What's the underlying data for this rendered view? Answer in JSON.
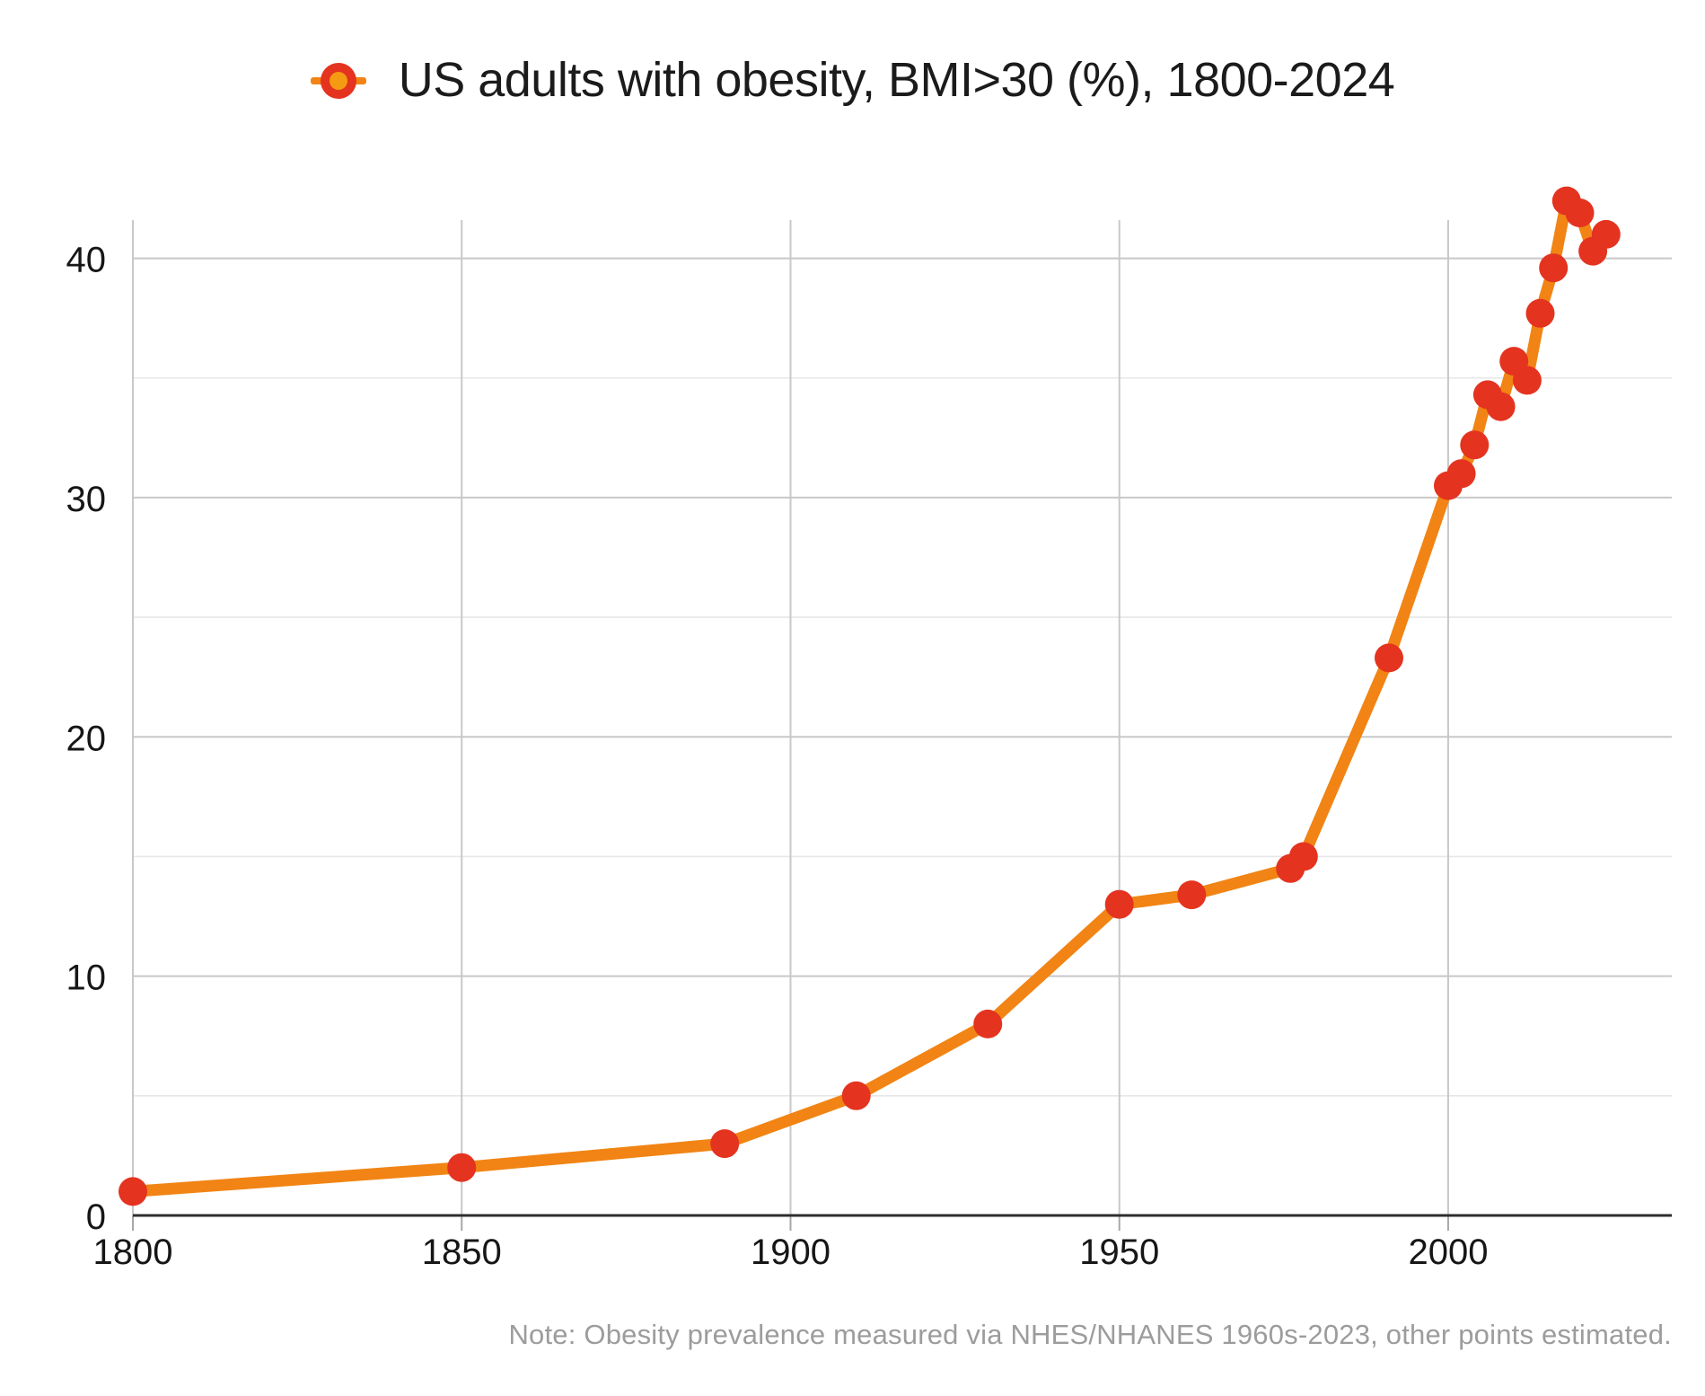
{
  "title": {
    "text": "US adults with obesity, BMI>30 (%), 1800-2024"
  },
  "note": {
    "text": "Note: Obesity prevalence measured via NHES/NHANES 1960s-2023, other points estimated."
  },
  "legend": {
    "marker": "line-with-round-marker"
  },
  "colors": {
    "background": "#ffffff",
    "line": "#F18414",
    "marker": "#E4331F",
    "legend_inner": "#F59B13",
    "grid_major": "#c8c8c8",
    "grid_minor": "#e7e7e7",
    "left_spine": "#c8c8c8",
    "axis_line": "#2e2e2e",
    "tick_stub": "#a8a8a8",
    "tick_label": "#161616",
    "title_text": "#1b1b1b",
    "note_text": "#9c9c9c"
  },
  "chart_data": {
    "type": "line",
    "title": "US adults with obesity, BMI>30 (%), 1800-2024",
    "xlabel": "",
    "ylabel": "",
    "x_ticks": [
      1800,
      1850,
      1900,
      1950,
      2000
    ],
    "y_ticks": [
      0,
      10,
      20,
      30,
      40
    ],
    "y_minor_gridlines": [
      5,
      15,
      25,
      35
    ],
    "xlim": [
      1800,
      2034
    ],
    "ylim": [
      0,
      43.1
    ],
    "grid": true,
    "legend_position": "title-inline",
    "series": [
      {
        "name": "US adults with obesity, BMI>30 (%)",
        "points": [
          [
            1800,
            1.0
          ],
          [
            1850,
            2.0
          ],
          [
            1890,
            3.0
          ],
          [
            1910,
            5.0
          ],
          [
            1930,
            8.0
          ],
          [
            1950,
            13.0
          ],
          [
            1961,
            13.4
          ],
          [
            1976,
            14.5
          ],
          [
            1978,
            15.0
          ],
          [
            1991,
            23.3
          ],
          [
            2000,
            30.5
          ],
          [
            2002,
            31.0
          ],
          [
            2004,
            32.2
          ],
          [
            2006,
            34.3
          ],
          [
            2008,
            33.8
          ],
          [
            2010,
            35.7
          ],
          [
            2012,
            34.9
          ],
          [
            2014,
            37.7
          ],
          [
            2016,
            39.6
          ],
          [
            2018,
            42.4
          ],
          [
            2020,
            41.9
          ],
          [
            2022,
            40.3
          ],
          [
            2024,
            41.0
          ]
        ]
      }
    ]
  }
}
